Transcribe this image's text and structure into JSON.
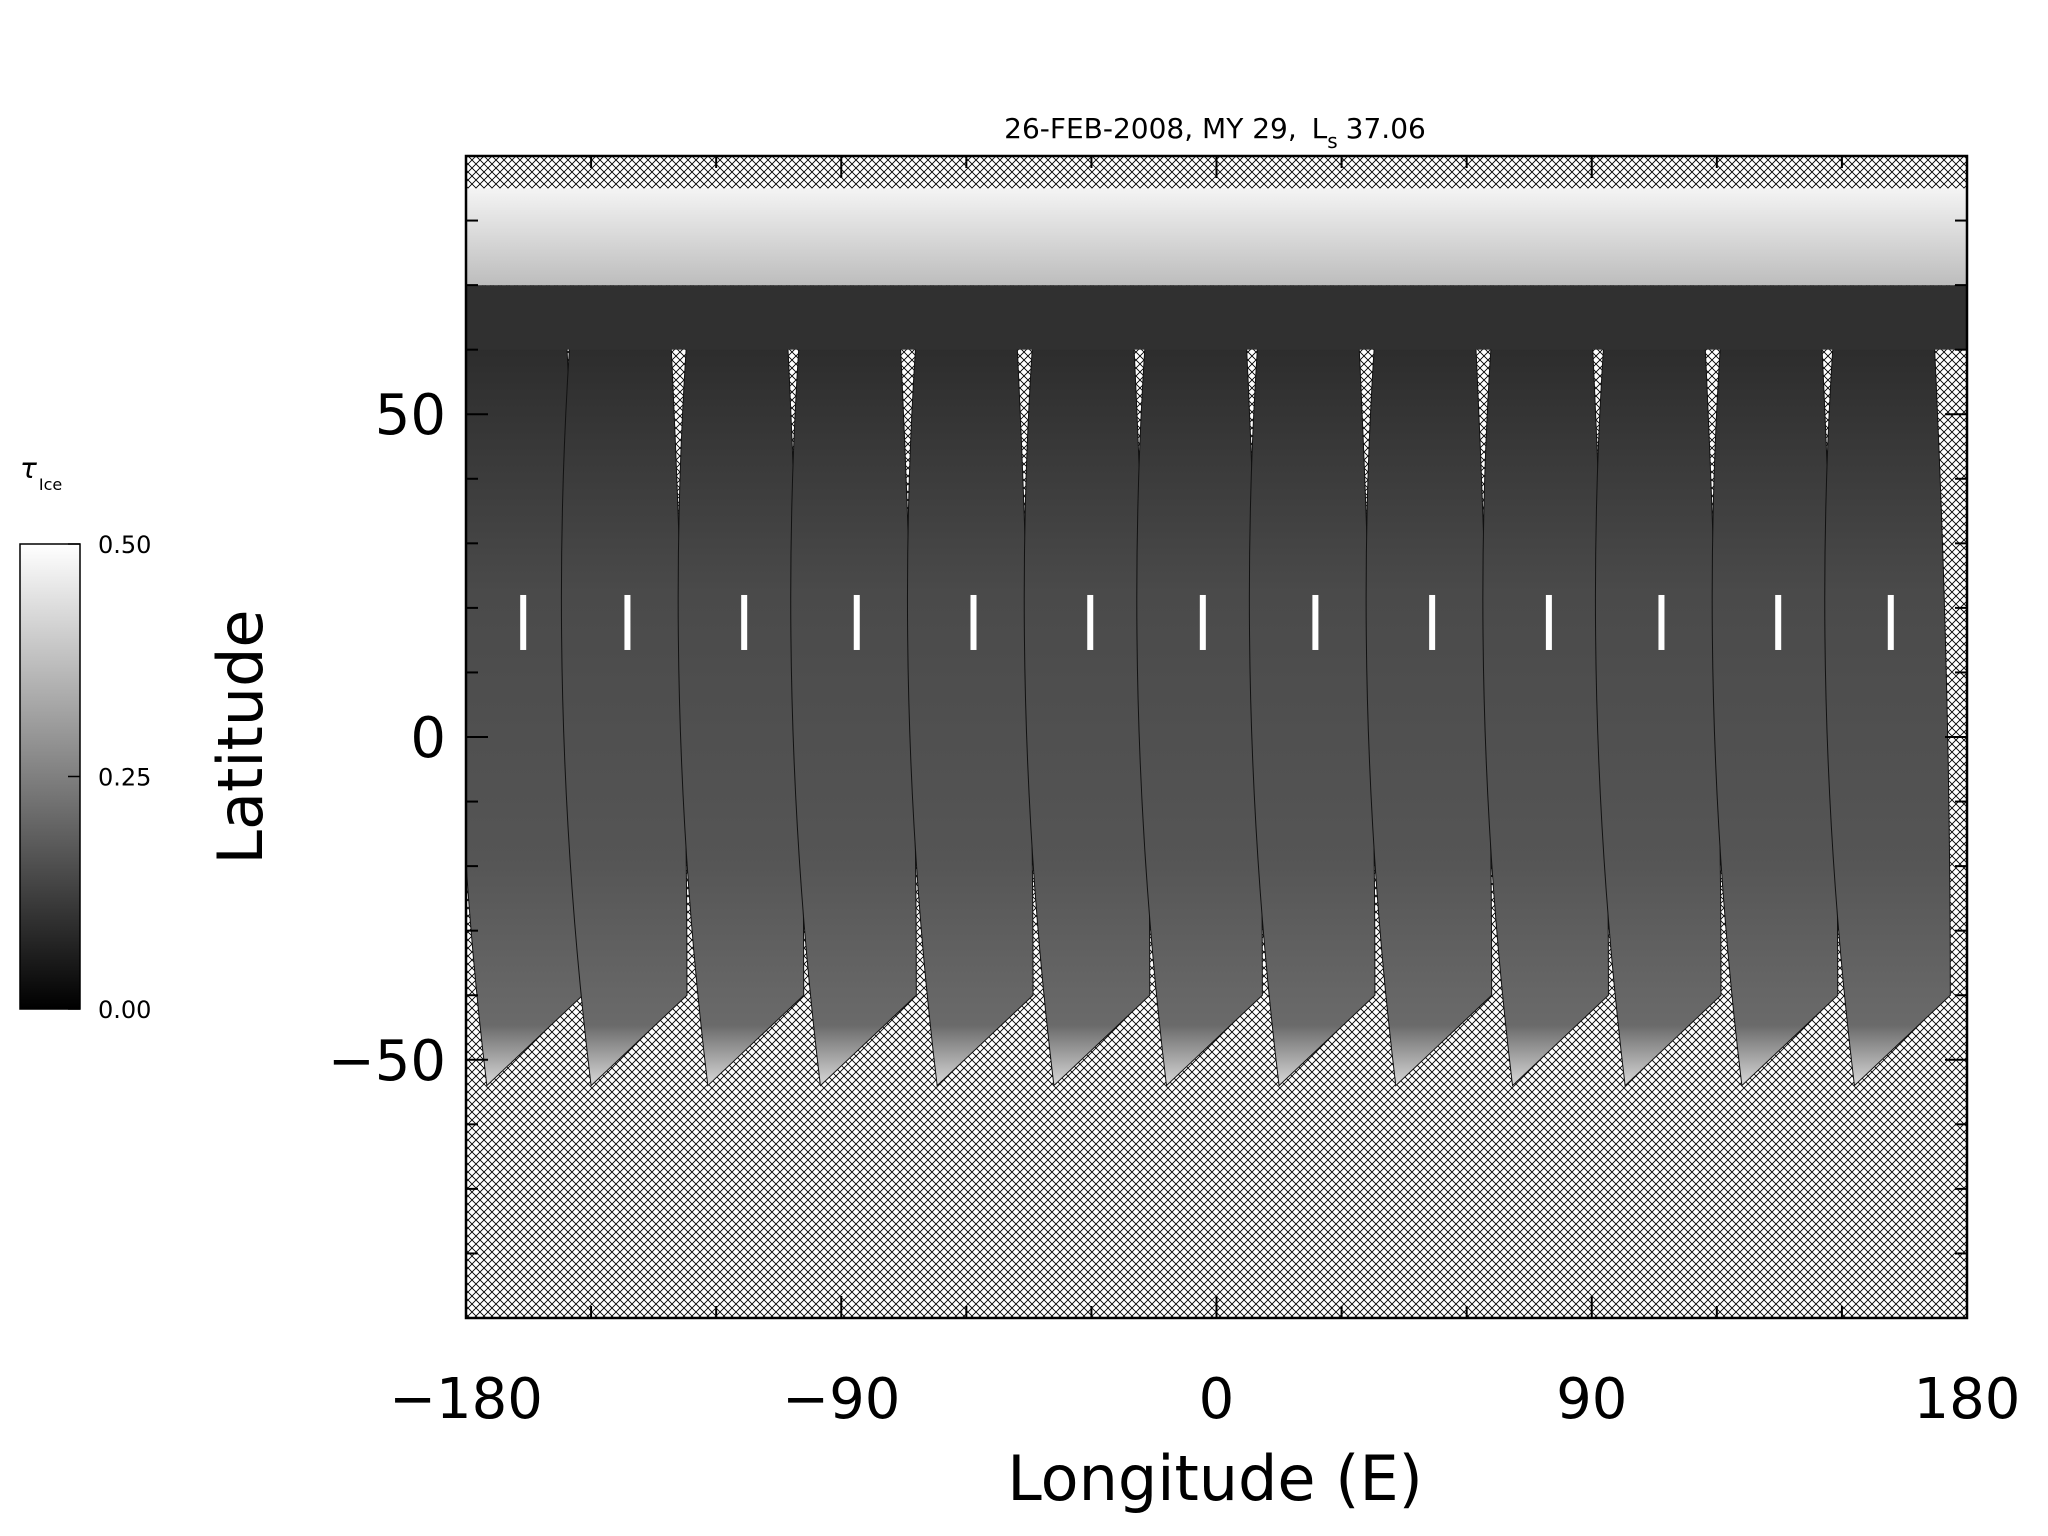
{
  "chart_data": {
    "type": "heatmap",
    "title": {
      "prefix": "26-FEB-2008, MY 29, ",
      "ls_symbol": "L",
      "ls_subscript": "s",
      "ls_value": "37.06"
    },
    "xlabel": "Longitude (E)",
    "ylabel": "Latitude",
    "xlim": [
      -180,
      180
    ],
    "ylim": [
      -90,
      90
    ],
    "xticks": [
      -180,
      -90,
      0,
      90,
      180
    ],
    "xtick_labels": [
      "−180",
      "−90",
      "0",
      "90",
      "180"
    ],
    "yticks": [
      -50,
      0,
      50
    ],
    "ytick_labels": [
      "−50",
      "0",
      "50"
    ],
    "grid": false,
    "colormap": "grayscale",
    "no_data_fill": "crosshatch",
    "polar_cap": {
      "lat_min": 70,
      "lat_max": 85
    },
    "swaths": {
      "count": 13,
      "start_lon": [
        -180,
        -155,
        -127,
        -100,
        -72,
        -44,
        -17,
        10,
        38,
        66,
        93,
        121,
        148
      ],
      "lat_top": 62,
      "lat_bottom": -54,
      "tilt_deg_lon": -26
    },
    "colorbar": {
      "label_symbol": "τ",
      "label_subscript": "Ice",
      "ticks": [
        {
          "value": 0.5,
          "label": "0.50"
        },
        {
          "value": 0.25,
          "label": "0.25"
        },
        {
          "value": 0.0,
          "label": "0.00"
        }
      ],
      "min": 0.0,
      "max": 0.5,
      "colors": {
        "low": "#000000",
        "high": "#ffffff"
      }
    }
  }
}
